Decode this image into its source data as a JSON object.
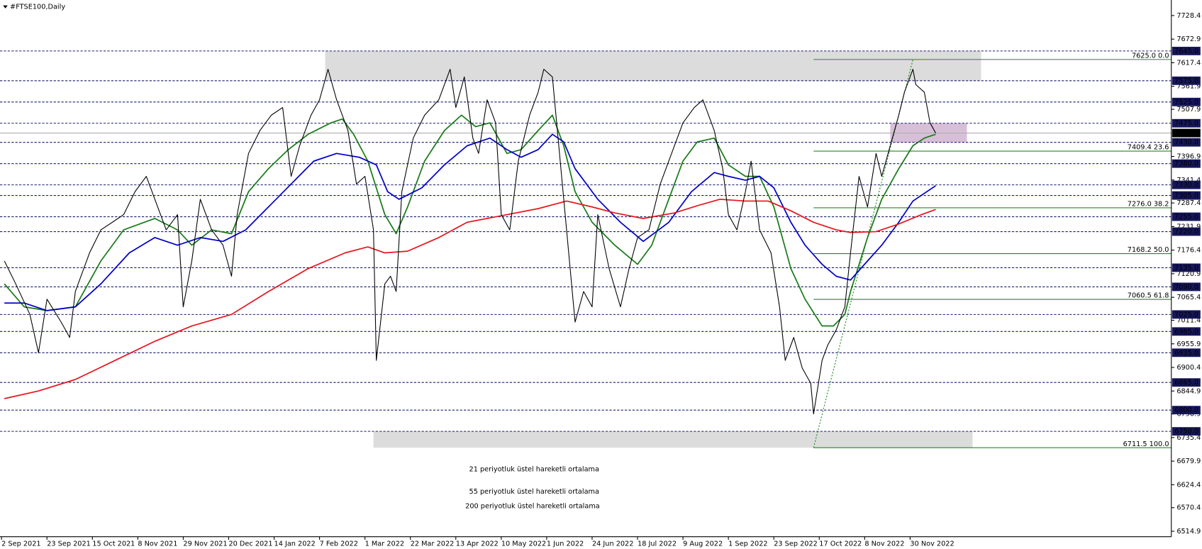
{
  "chart_data": {
    "type": "line",
    "title": "#FTSE100,Daily",
    "xlim": [
      0,
      412
    ],
    "xticks": [
      {
        "value": 0,
        "label": "2 Sep 2021"
      },
      {
        "value": 16,
        "label": "23 Sep 2021"
      },
      {
        "value": 32,
        "label": "15 Oct 2021"
      },
      {
        "value": 48,
        "label": "8 Nov 2021"
      },
      {
        "value": 64,
        "label": "29 Nov 2021"
      },
      {
        "value": 80,
        "label": "20 Dec 2021"
      },
      {
        "value": 96,
        "label": "14 Jan 2022"
      },
      {
        "value": 112,
        "label": "7 Feb 2022"
      },
      {
        "value": 128,
        "label": "1 Mar 2022"
      },
      {
        "value": 144,
        "label": "22 Mar 2022"
      },
      {
        "value": 160,
        "label": "13 Apr 2022"
      },
      {
        "value": 176,
        "label": "10 May 2022"
      },
      {
        "value": 192,
        "label": "1 Jun 2022"
      },
      {
        "value": 208,
        "label": "24 Jun 2022"
      },
      {
        "value": 224,
        "label": "18 Jul 2022"
      },
      {
        "value": 240,
        "label": "9 Aug 2022"
      },
      {
        "value": 256,
        "label": "1 Sep 2022"
      },
      {
        "value": 272,
        "label": "23 Sep 2022"
      },
      {
        "value": 288,
        "label": "17 Oct 2022"
      },
      {
        "value": 304,
        "label": "8 Nov 2022"
      },
      {
        "value": 320,
        "label": "30 Nov 2022"
      }
    ],
    "ylim": [
      6502,
      7765
    ],
    "yticks": [
      7728.4,
      7672.9,
      7617.4,
      7561.9,
      7507.9,
      7396.9,
      7341.4,
      7287.4,
      7231.9,
      7176.4,
      7120.9,
      7065.4,
      7011.4,
      6955.9,
      6900.4,
      6844.9,
      6790.9,
      6735.4,
      6679.9,
      6624.4,
      6570.4,
      6514.9
    ],
    "levels": [
      {
        "value": 7645,
        "label": "7645.0"
      },
      {
        "value": 7575,
        "label": "7575.0"
      },
      {
        "value": 7525,
        "label": "7525.0"
      },
      {
        "value": 7475,
        "label": "7475.0"
      },
      {
        "value": 7430,
        "label": "7430.0"
      },
      {
        "value": 7380,
        "label": "7380.0"
      },
      {
        "value": 7330,
        "label": "7330.0"
      },
      {
        "value": 7305,
        "label": "7305.0"
      },
      {
        "value": 7255,
        "label": "7255.0"
      },
      {
        "value": 7220,
        "label": "7220.0"
      },
      {
        "value": 7135,
        "label": "7135.0"
      },
      {
        "value": 7090,
        "label": "7090.0"
      },
      {
        "value": 7025,
        "label": "7025.0"
      },
      {
        "value": 6985,
        "label": "6985.0"
      },
      {
        "value": 6935,
        "label": "6935.0"
      },
      {
        "value": 6865,
        "label": "6865.0"
      },
      {
        "value": 6800,
        "label": "6800.0"
      },
      {
        "value": 6750,
        "label": "6750.0"
      }
    ],
    "current": {
      "value": 7452,
      "label": "7452.0"
    },
    "fibonacci": {
      "x": [
        286,
        321
      ],
      "color": "#1f8c1f",
      "levels": [
        {
          "value": 7625.0,
          "label": "7625.0 0.0"
        },
        {
          "value": 7409.4,
          "label": "7409.4 23.6"
        },
        {
          "value": 7276.0,
          "label": "7276.0 38.2"
        },
        {
          "value": 7168.2,
          "label": "7168.2 50.0"
        },
        {
          "value": 7060.5,
          "label": "7060.5 61.8"
        },
        {
          "value": 6711.5,
          "label": "6711.5 100.0"
        }
      ]
    },
    "zones": [
      {
        "x": [
          114,
          345
        ],
        "y": [
          7575,
          7645
        ],
        "color": "#dcdcdc"
      },
      {
        "x": [
          131,
          342
        ],
        "y": [
          6711.5,
          6750
        ],
        "color": "#dcdcdc"
      },
      {
        "x": [
          313,
          340
        ],
        "y": [
          7430,
          7475
        ],
        "color": "#d8bfd8"
      }
    ],
    "series": [
      {
        "color": "#000000",
        "x": [
          1,
          5,
          10,
          13,
          16,
          21,
          24,
          26,
          31,
          35,
          39,
          43,
          47,
          51,
          54,
          58,
          62,
          64,
          67,
          70,
          74,
          78,
          81,
          83,
          87,
          91,
          95,
          99,
          102,
          105,
          109,
          112,
          115,
          118,
          122,
          125,
          128,
          131,
          132,
          135,
          137,
          139,
          141,
          145,
          149,
          154,
          158,
          160,
          163,
          166,
          168,
          171,
          174,
          176,
          179,
          182,
          186,
          189,
          191,
          194,
          197,
          199,
          202,
          205,
          208,
          210,
          214,
          218,
          221,
          224,
          228,
          232,
          236,
          240,
          244,
          247,
          251,
          254,
          256,
          259,
          262,
          264,
          267,
          271,
          274,
          276,
          279,
          282,
          285,
          286,
          289,
          291,
          294,
          297,
          299,
          302,
          305,
          308,
          310,
          313,
          316,
          318,
          321,
          322,
          325,
          327,
          329
        ],
        "values": [
          7151,
          7097,
          7025,
          6935,
          7061,
          7007,
          6971,
          7079,
          7170,
          7224,
          7242,
          7260,
          7314,
          7350,
          7296,
          7224,
          7260,
          7043,
          7151,
          7296,
          7224,
          7188,
          7115,
          7260,
          7404,
          7458,
          7494,
          7512,
          7350,
          7422,
          7494,
          7530,
          7602,
          7530,
          7458,
          7332,
          7350,
          7224,
          6917,
          7097,
          7115,
          7079,
          7314,
          7440,
          7494,
          7530,
          7602,
          7512,
          7584,
          7440,
          7404,
          7530,
          7476,
          7260,
          7224,
          7386,
          7494,
          7548,
          7602,
          7584,
          7368,
          7224,
          7007,
          7079,
          7043,
          7260,
          7133,
          7043,
          7133,
          7206,
          7224,
          7332,
          7404,
          7476,
          7512,
          7530,
          7458,
          7368,
          7260,
          7224,
          7314,
          7386,
          7224,
          7170,
          7043,
          6917,
          6971,
          6899,
          6863,
          6791,
          6917,
          6953,
          6989,
          7043,
          7170,
          7350,
          7278,
          7404,
          7350,
          7422,
          7494,
          7548,
          7602,
          7566,
          7548,
          7476,
          7452
        ]
      },
      {
        "name": "21 periyotluk üstel hareketli ortalama",
        "color": "#1a7a1a",
        "x": [
          1,
          8,
          16,
          26,
          35,
          43,
          54,
          62,
          67,
          74,
          81,
          87,
          94,
          101,
          108,
          116,
          120,
          124,
          129,
          135,
          139,
          143,
          149,
          156,
          162,
          167,
          172,
          178,
          183,
          189,
          194,
          198,
          202,
          208,
          216,
          224,
          229,
          235,
          240,
          245,
          251,
          256,
          262,
          267,
          272,
          278,
          283,
          289,
          293,
          297,
          299,
          305,
          310,
          316,
          321,
          325,
          329
        ],
        "values": [
          7097,
          7043,
          7034,
          7043,
          7151,
          7224,
          7251,
          7224,
          7188,
          7224,
          7215,
          7314,
          7368,
          7413,
          7449,
          7476,
          7485,
          7449,
          7386,
          7260,
          7215,
          7278,
          7386,
          7458,
          7494,
          7467,
          7476,
          7404,
          7413,
          7458,
          7494,
          7422,
          7314,
          7242,
          7188,
          7143,
          7188,
          7296,
          7386,
          7431,
          7440,
          7377,
          7350,
          7350,
          7278,
          7133,
          7061,
          6998,
          6998,
          7025,
          7079,
          7206,
          7296,
          7368,
          7422,
          7440,
          7449
        ]
      },
      {
        "name": "55 periyotluk üstel hareketli ortalama",
        "color": "#0000c8",
        "x": [
          1,
          8,
          16,
          26,
          35,
          45,
          54,
          62,
          70,
          78,
          86,
          94,
          102,
          110,
          118,
          126,
          132,
          136,
          140,
          148,
          156,
          164,
          172,
          178,
          183,
          189,
          194,
          198,
          202,
          210,
          218,
          226,
          235,
          243,
          251,
          256,
          262,
          267,
          272,
          278,
          283,
          289,
          294,
          299,
          305,
          310,
          316,
          321,
          329
        ],
        "values": [
          7052,
          7052,
          7034,
          7043,
          7097,
          7170,
          7206,
          7188,
          7206,
          7197,
          7224,
          7278,
          7332,
          7386,
          7404,
          7395,
          7377,
          7314,
          7296,
          7323,
          7377,
          7422,
          7440,
          7413,
          7395,
          7413,
          7449,
          7431,
          7368,
          7296,
          7242,
          7197,
          7242,
          7314,
          7359,
          7350,
          7341,
          7350,
          7323,
          7242,
          7188,
          7143,
          7115,
          7106,
          7151,
          7188,
          7242,
          7292,
          7328
        ]
      },
      {
        "name": "200 periyotluk üstel hareketli ortalama",
        "color": "#e8141e",
        "x": [
          1,
          13,
          26,
          40,
          54,
          67,
          81,
          94,
          108,
          121,
          129,
          135,
          143,
          154,
          164,
          175,
          189,
          199,
          208,
          216,
          226,
          237,
          245,
          253,
          262,
          270,
          278,
          286,
          294,
          299,
          308,
          316,
          324,
          329
        ],
        "values": [
          6827,
          6845,
          6872,
          6917,
          6962,
          6998,
          7025,
          7079,
          7133,
          7170,
          7184,
          7170,
          7174,
          7206,
          7242,
          7256,
          7274,
          7292,
          7278,
          7264,
          7251,
          7264,
          7281,
          7296,
          7292,
          7292,
          7269,
          7242,
          7224,
          7218,
          7220,
          7238,
          7260,
          7272
        ]
      }
    ]
  }
}
